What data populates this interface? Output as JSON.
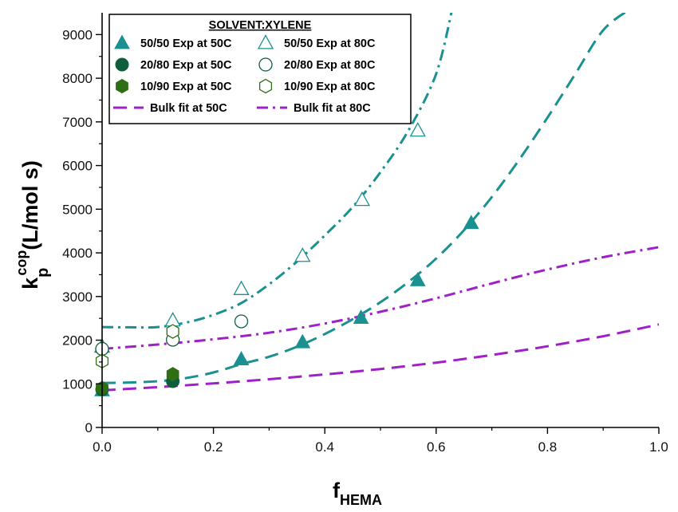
{
  "chart_data": {
    "type": "scatter",
    "title": "",
    "xlabel": {
      "main": "f",
      "sub": "HEMA"
    },
    "ylabel": {
      "main": "k",
      "sub": "p",
      "sup": "cop",
      "rest": "(L/mol s)"
    },
    "xlim": [
      0,
      1.0
    ],
    "ylim": [
      0,
      9500
    ],
    "xticks": [
      0.0,
      0.2,
      0.4,
      0.6,
      0.8,
      1.0
    ],
    "xtick_labels": [
      "0.0",
      "0.2",
      "0.4",
      "0.6",
      "0.8",
      "1.0"
    ],
    "yticks": [
      0,
      1000,
      2000,
      3000,
      4000,
      5000,
      6000,
      7000,
      8000,
      9000
    ],
    "ytick_labels": [
      "0",
      "1000",
      "2000",
      "3000",
      "4000",
      "5000",
      "6000",
      "7000",
      "8000",
      "9000"
    ],
    "grid": false,
    "legend": {
      "title": "SOLVENT:XYLENE",
      "placement": "top-left"
    },
    "colors": {
      "teal": "#1a9090",
      "dark_green": "#0e5e3c",
      "forest_green": "#2e6e14",
      "purple": "#a020c8"
    },
    "series": [
      {
        "name": "50/50 Exp at 50C",
        "marker": "triangle",
        "filled": true,
        "color": "#1a9090",
        "x": [
          0.0,
          0.25,
          0.36,
          0.465,
          0.567,
          0.663
        ],
        "y": [
          850,
          1560,
          1950,
          2510,
          3370,
          4680
        ]
      },
      {
        "name": "20/80 Exp at 50C",
        "marker": "circle",
        "filled": true,
        "color": "#0e5e3c",
        "x": [
          0.0,
          0.127
        ],
        "y": [
          870,
          1060
        ]
      },
      {
        "name": "10/90 Exp at 50C",
        "marker": "hexagon",
        "filled": true,
        "color": "#2e6e14",
        "x": [
          0.0,
          0.127
        ],
        "y": [
          900,
          1220
        ]
      },
      {
        "name": "50/50 Exp at 80C",
        "marker": "triangle",
        "filled": false,
        "color": "#1a9090",
        "x": [
          0.0,
          0.127,
          0.25,
          0.36,
          0.467,
          0.567
        ],
        "y": [
          1850,
          2450,
          3170,
          3930,
          5210,
          6800
        ]
      },
      {
        "name": "20/80 Exp at 80C",
        "marker": "circle",
        "filled": false,
        "color": "#0e5e3c",
        "x": [
          0.0,
          0.127,
          0.25
        ],
        "y": [
          1800,
          2010,
          2430
        ]
      },
      {
        "name": "10/90 Exp at 80C",
        "marker": "hexagon",
        "filled": false,
        "color": "#2e6e14",
        "x": [
          0.0,
          0.127
        ],
        "y": [
          1520,
          2200
        ]
      },
      {
        "name": "Bulk fit at 50C",
        "line": "dash",
        "color": "#a020c8",
        "x": [
          0.0,
          0.1,
          0.2,
          0.3,
          0.4,
          0.5,
          0.6,
          0.7,
          0.8,
          0.9,
          1.0
        ],
        "y": [
          850,
          925,
          1010,
          1105,
          1215,
          1340,
          1485,
          1660,
          1860,
          2090,
          2360
        ]
      },
      {
        "name": "Bulk fit at 80C",
        "line": "dashdot",
        "color": "#a020c8",
        "x": [
          0.0,
          0.1,
          0.2,
          0.3,
          0.4,
          0.5,
          0.6,
          0.7,
          0.8,
          0.9,
          1.0
        ],
        "y": [
          1800,
          1900,
          2020,
          2170,
          2380,
          2650,
          2960,
          3300,
          3620,
          3900,
          4130
        ]
      },
      {
        "name": "",
        "line": "dash",
        "color": "#1a9090",
        "x": [
          0.0,
          0.05,
          0.1,
          0.15,
          0.2,
          0.25,
          0.3,
          0.35,
          0.4,
          0.45,
          0.5,
          0.55,
          0.6,
          0.65,
          0.7,
          0.75,
          0.8,
          0.85,
          0.9,
          0.95
        ],
        "y": [
          1020,
          1030,
          1060,
          1130,
          1260,
          1450,
          1620,
          1850,
          2140,
          2480,
          2870,
          3330,
          3870,
          4520,
          5280,
          6150,
          7100,
          8100,
          9100,
          9600
        ]
      },
      {
        "name": "",
        "line": "dashdot",
        "color": "#1a9090",
        "x": [
          0.0,
          0.05,
          0.1,
          0.15,
          0.2,
          0.25,
          0.3,
          0.35,
          0.4,
          0.45,
          0.5,
          0.55,
          0.6,
          0.63
        ],
        "y": [
          2300,
          2295,
          2300,
          2400,
          2580,
          2850,
          3280,
          3800,
          4400,
          5050,
          5850,
          6800,
          8100,
          9650
        ]
      }
    ]
  }
}
